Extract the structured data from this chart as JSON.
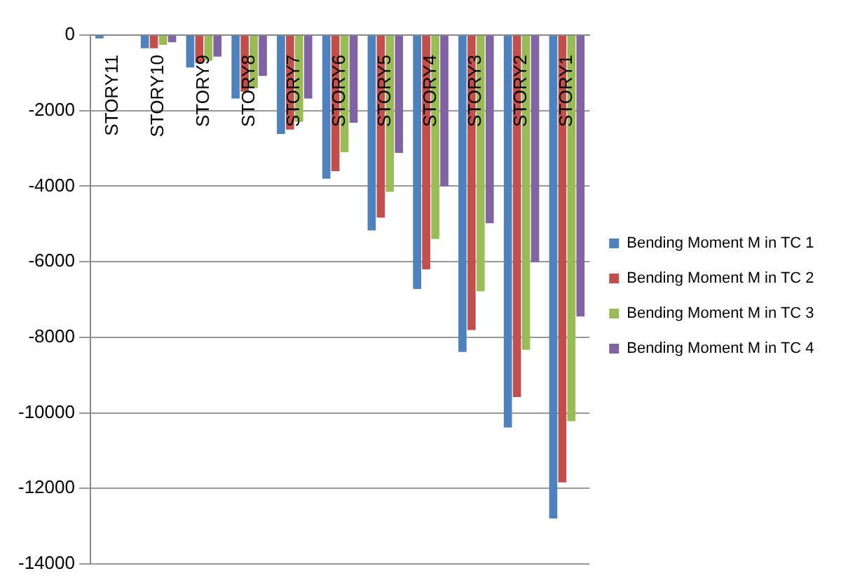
{
  "chart_data": {
    "type": "bar",
    "categories": [
      "STORY11",
      "STORY10",
      "STORY9",
      "STORY8",
      "STORY7",
      "STORY6",
      "STORY5",
      "STORY4",
      "STORY3",
      "STORY2",
      "STORY1"
    ],
    "series": [
      {
        "name": "Bending Moment M in TC 1",
        "color": "#4f81bd",
        "values": [
          -90,
          -350,
          -860,
          -1680,
          -2620,
          -3800,
          -5170,
          -6720,
          -8390,
          -10390,
          -12800
        ]
      },
      {
        "name": "Bending Moment M in TC 2",
        "color": "#c0504d",
        "values": [
          -20,
          -350,
          -740,
          -1500,
          -2500,
          -3600,
          -4830,
          -6200,
          -7810,
          -9580,
          -11840
        ]
      },
      {
        "name": "Bending Moment M in TC 3",
        "color": "#9bbb59",
        "values": [
          -20,
          -260,
          -680,
          -1400,
          -2300,
          -3100,
          -4150,
          -5400,
          -6780,
          -8330,
          -10220
        ]
      },
      {
        "name": "Bending Moment M in TC 4",
        "color": "#8064a2",
        "values": [
          -20,
          -190,
          -570,
          -1080,
          -1680,
          -2320,
          -3120,
          -4000,
          -4980,
          -6010,
          -7450
        ]
      }
    ],
    "ylim": [
      -14000,
      0
    ],
    "yticks": [
      -14000,
      -12000,
      -10000,
      -8000,
      -6000,
      -4000,
      -2000,
      0
    ],
    "grid": "y",
    "legend": "right"
  }
}
